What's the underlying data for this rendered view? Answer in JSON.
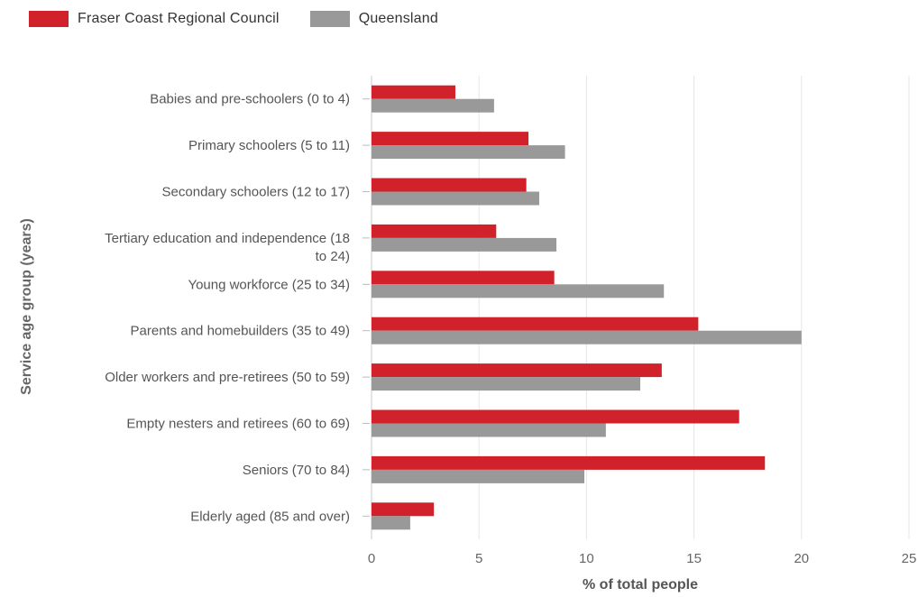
{
  "chart_data": {
    "type": "bar",
    "orientation": "horizontal",
    "title": "",
    "xlabel": "% of total people",
    "ylabel": "Service age group (years)",
    "xlim": [
      0,
      25
    ],
    "x_ticks": [
      0,
      5,
      10,
      15,
      20,
      25
    ],
    "grid": true,
    "legend_position": "top-left",
    "categories": [
      "Babies and pre-schoolers (0 to 4)",
      "Primary schoolers (5 to 11)",
      "Secondary schoolers (12 to 17)",
      "Tertiary education and independence (18 to 24)",
      "Young workforce (25 to 34)",
      "Parents and homebuilders (35 to 49)",
      "Older workers and pre-retirees (50 to 59)",
      "Empty nesters and retirees (60 to 69)",
      "Seniors (70 to 84)",
      "Elderly aged (85 and over)"
    ],
    "category_lines": [
      [
        "Babies and pre-schoolers (0 to 4)"
      ],
      [
        "Primary schoolers (5 to 11)"
      ],
      [
        "Secondary schoolers (12 to 17)"
      ],
      [
        "Tertiary education and independence (18",
        "to 24)"
      ],
      [
        "Young workforce (25 to 34)"
      ],
      [
        "Parents and homebuilders (35 to 49)"
      ],
      [
        "Older workers and pre-retirees (50 to 59)"
      ],
      [
        "Empty nesters and retirees (60 to 69)"
      ],
      [
        "Seniors (70 to 84)"
      ],
      [
        "Elderly aged (85 and over)"
      ]
    ],
    "series": [
      {
        "name": "Fraser Coast Regional Council",
        "color": "#d1222b",
        "values": [
          3.9,
          7.3,
          7.2,
          5.8,
          8.5,
          15.2,
          13.5,
          17.1,
          18.3,
          2.9
        ]
      },
      {
        "name": "Queensland",
        "color": "#999999",
        "values": [
          5.7,
          9.0,
          7.8,
          8.6,
          13.6,
          20.0,
          12.5,
          10.9,
          9.9,
          1.8
        ]
      }
    ]
  }
}
